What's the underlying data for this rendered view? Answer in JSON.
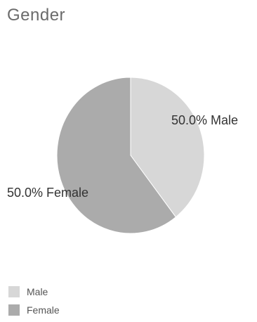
{
  "chart_data": {
    "type": "pie",
    "title": "Gender",
    "slices": [
      {
        "name": "Male",
        "value": 50.0,
        "label": "50.0% Male",
        "color": "#d7d7d7"
      },
      {
        "name": "Female",
        "value": 50.0,
        "label": "50.0% Female",
        "color": "#ababab"
      }
    ],
    "legend": {
      "position": "bottom-left",
      "entries": [
        "Male",
        "Female"
      ]
    }
  }
}
